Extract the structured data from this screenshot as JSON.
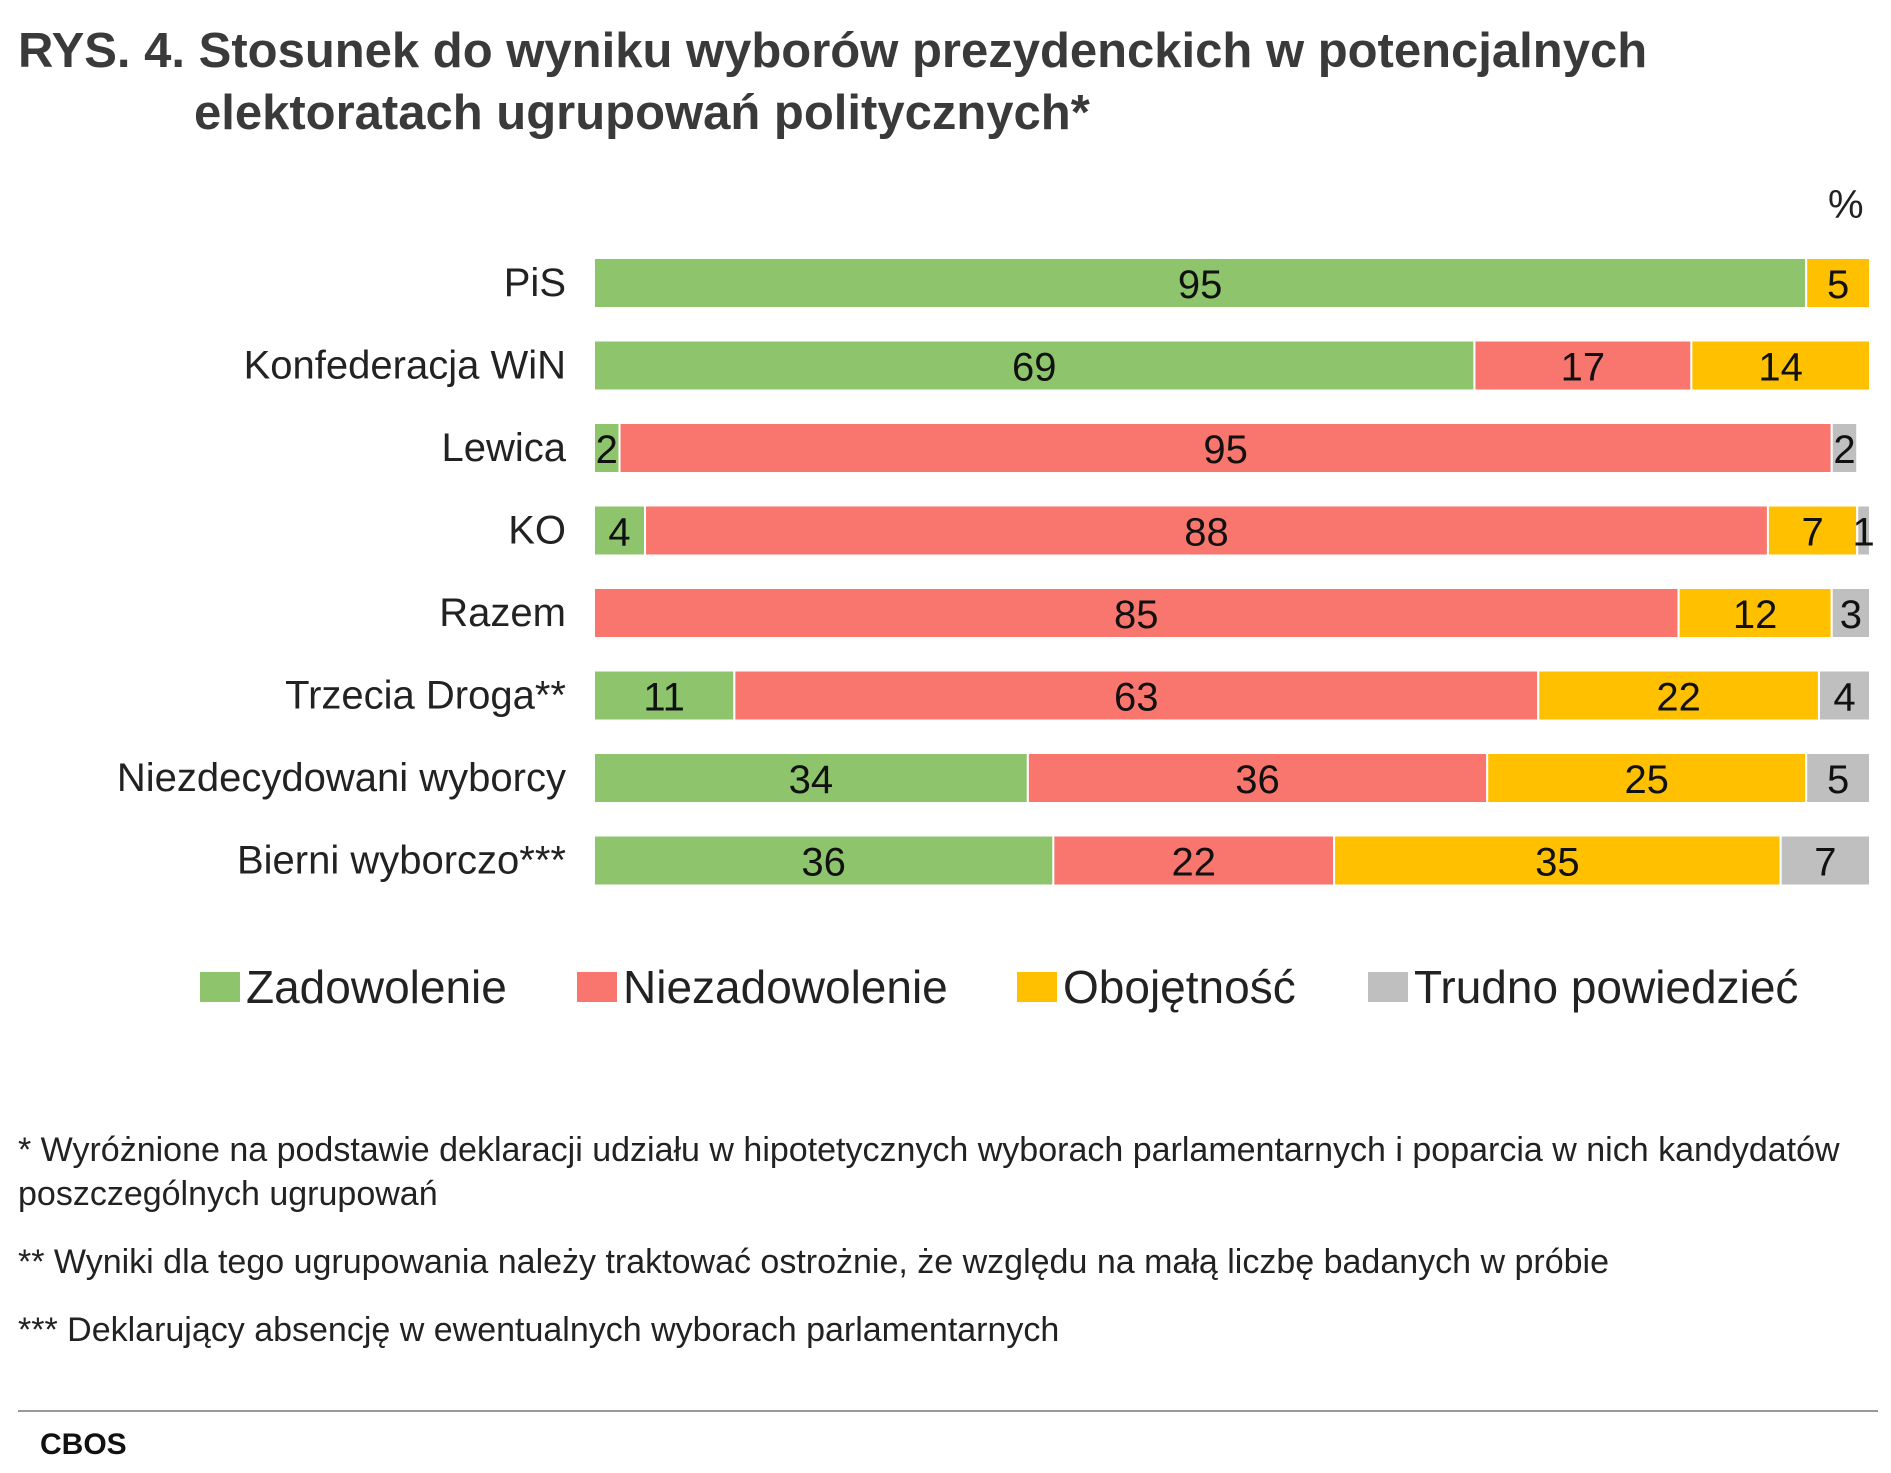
{
  "title_line1": "RYS. 4. Stosunek do wyniku wyborów prezydenckich w potencjalnych",
  "title_line2": "elektoratach ugrupowań politycznych*",
  "unit_label": "%",
  "chart_data": {
    "type": "bar",
    "orientation": "horizontal",
    "stacked": true,
    "title": "Stosunek do wyniku wyborów prezydenckich w potencjalnych elektoratach ugrupowań politycznych*",
    "unit": "%",
    "xlim": [
      0,
      100
    ],
    "categories": [
      "PiS",
      "Konfederacja WiN",
      "Lewica",
      "KO",
      "Razem",
      "Trzecia Droga**",
      "Niezdecydowani wyborcy",
      "Bierni wyborczo***"
    ],
    "series": [
      {
        "name": "Zadowolenie",
        "color": "#8dc46c",
        "values": [
          95,
          69,
          2,
          4,
          0,
          11,
          34,
          36
        ]
      },
      {
        "name": "Niezadowolenie",
        "color": "#f8766d",
        "values": [
          0,
          17,
          95,
          88,
          85,
          63,
          36,
          22
        ]
      },
      {
        "name": "Obojętność",
        "color": "#ffc000",
        "values": [
          5,
          14,
          0,
          7,
          12,
          22,
          25,
          35
        ]
      },
      {
        "name": "Trudno powiedzieć",
        "color": "#bfbfbf",
        "values": [
          0,
          0,
          2,
          1,
          3,
          4,
          5,
          7
        ]
      }
    ],
    "legend_position": "bottom"
  },
  "legend": [
    {
      "label": "Zadowolenie",
      "color": "#8dc46c"
    },
    {
      "label": "Niezadowolenie",
      "color": "#f8766d"
    },
    {
      "label": "Obojętność",
      "color": "#ffc000"
    },
    {
      "label": "Trudno powiedzieć",
      "color": "#bfbfbf"
    }
  ],
  "footnotes": {
    "note1": "* Wyróżnione na podstawie deklaracji udziału w hipotetycznych wyborach parlamentarnych i poparcia w nich kandydatów poszczególnych ugrupowań",
    "note2": "** Wyniki dla tego ugrupowania należy traktować ostrożnie, że względu na małą liczbę badanych w próbie",
    "note3": "*** Deklarujący absencję w ewentualnych wyborach parlamentarnych"
  },
  "source": "CBOS"
}
